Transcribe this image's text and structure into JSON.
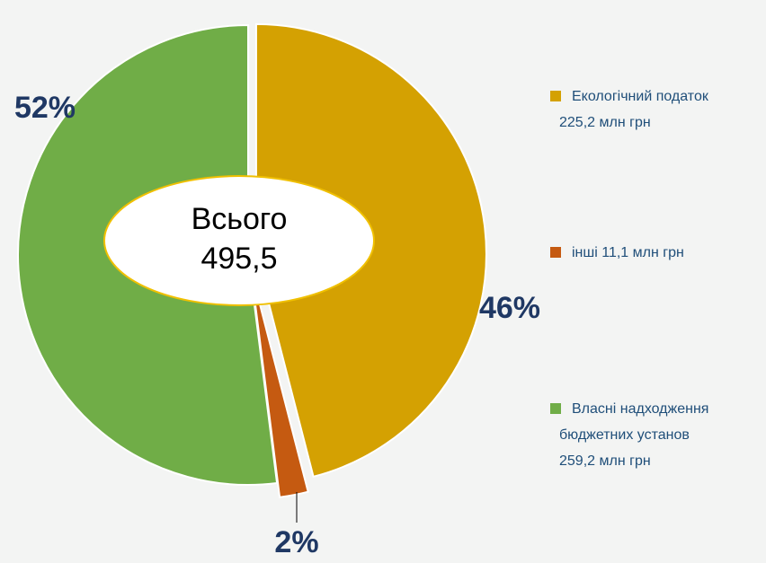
{
  "chart_data": {
    "type": "pie",
    "categories": [
      [
        "Екологічний  податок",
        "225,2  млн грн"
      ],
      [
        "інші  11,1  млн грн"
      ],
      [
        "Власні надходження",
        "бюджетних установ",
        "259,2  млн грн"
      ]
    ],
    "values": [
      46,
      2,
      52
    ],
    "value_labels": [
      "46%",
      "2%",
      "52%"
    ],
    "colors": [
      "#d4a102",
      "#c55a11",
      "#70ad47"
    ],
    "center_label": [
      "Всього",
      "495,5"
    ]
  }
}
